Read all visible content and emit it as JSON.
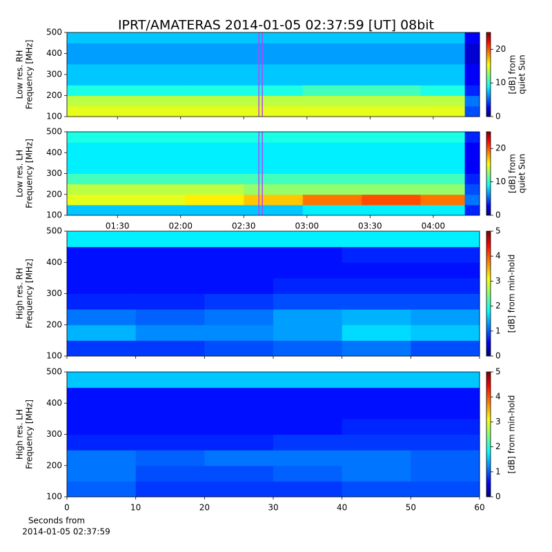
{
  "title": "IPRT/AMATERAS 2014-01-05 02:37:59 [UT]   08bit",
  "chart_data": [
    {
      "type": "heatmap",
      "colormap": "jet",
      "ylabel": [
        "Low res. RH",
        "Frequency [MHz]"
      ],
      "ylim": [
        100,
        500
      ],
      "yticks": [
        100,
        200,
        300,
        400,
        500
      ],
      "xlim": [
        66,
        262
      ],
      "xticks": [
        {
          "value": 90,
          "label": "01:30"
        },
        {
          "value": 120,
          "label": "02:00"
        },
        {
          "value": 150,
          "label": "02:30"
        },
        {
          "value": 180,
          "label": "03:00"
        },
        {
          "value": 210,
          "label": "03:30"
        },
        {
          "value": 240,
          "label": "04:00"
        }
      ],
      "xtick_labels": false,
      "x_bins": [
        66,
        94,
        122,
        150,
        178,
        206,
        234,
        255,
        262
      ],
      "y_bins": [
        100,
        150,
        200,
        250,
        300,
        350,
        400,
        450,
        500
      ],
      "z": [
        [
          15,
          15,
          15,
          15,
          15,
          15,
          15,
          5
        ],
        [
          14,
          14,
          14,
          14,
          14,
          14,
          14,
          6
        ],
        [
          10,
          10,
          10,
          10,
          11,
          11,
          10,
          4
        ],
        [
          8,
          8,
          8,
          8,
          8,
          8,
          8,
          3
        ],
        [
          8,
          8,
          8,
          8,
          8,
          8,
          8,
          3
        ],
        [
          7,
          7,
          7,
          7,
          7,
          7,
          7,
          2
        ],
        [
          7,
          7,
          7,
          7,
          7,
          7,
          7,
          2
        ],
        [
          8,
          8,
          8,
          8,
          8,
          8,
          8,
          3
        ]
      ],
      "marker_x": 158,
      "marker_color": "#c040ff",
      "clim": [
        0,
        25
      ],
      "cticks": [
        0,
        10,
        20
      ],
      "colorbar_label": [
        "[dB] from",
        "quiet Sun"
      ]
    },
    {
      "type": "heatmap",
      "colormap": "jet",
      "ylabel": [
        "Low res. LH",
        "Frequency [MHz]"
      ],
      "ylim": [
        100,
        500
      ],
      "yticks": [
        100,
        200,
        300,
        400,
        500
      ],
      "xlim": [
        66,
        262
      ],
      "xticks": [
        {
          "value": 90,
          "label": "01:30"
        },
        {
          "value": 120,
          "label": "02:00"
        },
        {
          "value": 150,
          "label": "02:30"
        },
        {
          "value": 180,
          "label": "03:00"
        },
        {
          "value": 210,
          "label": "03:30"
        },
        {
          "value": 240,
          "label": "04:00"
        }
      ],
      "xtick_labels": true,
      "x_bins": [
        66,
        94,
        122,
        150,
        178,
        206,
        234,
        255,
        262
      ],
      "y_bins": [
        100,
        150,
        200,
        250,
        300,
        350,
        400,
        450,
        500
      ],
      "z": [
        [
          8,
          8,
          8,
          8,
          9,
          9,
          9,
          4
        ],
        [
          15,
          15,
          16,
          17,
          19,
          20,
          19,
          6
        ],
        [
          14,
          14,
          14,
          13,
          13,
          13,
          13,
          5
        ],
        [
          11,
          11,
          11,
          11,
          11,
          11,
          11,
          4
        ],
        [
          9,
          9,
          9,
          9,
          9,
          9,
          9,
          3
        ],
        [
          9,
          9,
          9,
          9,
          9,
          9,
          9,
          3
        ],
        [
          9,
          9,
          9,
          9,
          9,
          9,
          9,
          3
        ],
        [
          10,
          10,
          10,
          10,
          10,
          10,
          10,
          4
        ]
      ],
      "marker_x": 158,
      "marker_color": "#c040ff",
      "clim": [
        0,
        25
      ],
      "cticks": [
        0,
        10,
        20
      ],
      "colorbar_label": [
        "[dB] from",
        "quiet Sun"
      ]
    },
    {
      "type": "heatmap",
      "colormap": "jet",
      "ylabel": [
        "High res. RH",
        "Frequency [MHz]"
      ],
      "ylim": [
        100,
        500
      ],
      "yticks": [
        100,
        200,
        300,
        400,
        500
      ],
      "xlim": [
        0,
        60
      ],
      "xticks": [
        0,
        10,
        20,
        30,
        40,
        50,
        60
      ],
      "xtick_labels": false,
      "x_bins": [
        0,
        10,
        20,
        30,
        40,
        50,
        60
      ],
      "y_bins": [
        100,
        150,
        200,
        250,
        300,
        350,
        400,
        450,
        500
      ],
      "z": [
        [
          0.9,
          0.9,
          1,
          1.1,
          1.2,
          1
        ],
        [
          1.5,
          1.3,
          1.3,
          1.4,
          1.7,
          1.6
        ],
        [
          1.2,
          1.1,
          1.2,
          1.4,
          1.5,
          1.4
        ],
        [
          0.8,
          0.8,
          0.9,
          1,
          1,
          1
        ],
        [
          0.7,
          0.7,
          0.7,
          0.8,
          0.8,
          0.8
        ],
        [
          0.7,
          0.7,
          0.7,
          0.7,
          0.7,
          0.7
        ],
        [
          0.7,
          0.7,
          0.7,
          0.7,
          0.8,
          0.8
        ],
        [
          1.8,
          1.8,
          1.8,
          1.8,
          1.8,
          1.8
        ]
      ],
      "clim": [
        0,
        5
      ],
      "cticks": [
        0,
        1,
        2,
        3,
        4,
        5
      ],
      "colorbar_label": [
        "[dB] from min-hold"
      ]
    },
    {
      "type": "heatmap",
      "colormap": "jet",
      "ylabel": [
        "High res. LH",
        "Frequency [MHz]"
      ],
      "ylim": [
        100,
        500
      ],
      "yticks": [
        100,
        200,
        300,
        400,
        500
      ],
      "xlim": [
        0,
        60
      ],
      "xticks": [
        0,
        10,
        20,
        30,
        40,
        50,
        60
      ],
      "xtick_labels": true,
      "xlabel": [
        "Seconds from",
        "2014-01-05 02:37:59"
      ],
      "x_bins": [
        0,
        10,
        20,
        30,
        40,
        50,
        60
      ],
      "y_bins": [
        100,
        150,
        200,
        250,
        300,
        350,
        400,
        450,
        500
      ],
      "z": [
        [
          1.1,
          0.9,
          0.9,
          0.9,
          1,
          1
        ],
        [
          1.2,
          1,
          1,
          1.1,
          1.2,
          1.1
        ],
        [
          1.2,
          1.1,
          1.2,
          1.2,
          1.2,
          1.1
        ],
        [
          0.8,
          0.8,
          0.8,
          0.9,
          0.9,
          0.9
        ],
        [
          0.7,
          0.7,
          0.7,
          0.7,
          0.8,
          0.8
        ],
        [
          0.7,
          0.7,
          0.7,
          0.7,
          0.7,
          0.7
        ],
        [
          0.7,
          0.7,
          0.7,
          0.7,
          0.7,
          0.7
        ],
        [
          1.6,
          1.6,
          1.6,
          1.6,
          1.6,
          1.6
        ]
      ],
      "clim": [
        0,
        5
      ],
      "cticks": [
        0,
        1,
        2,
        3,
        4,
        5
      ],
      "colorbar_label": [
        "[dB] from min-hold"
      ]
    }
  ]
}
